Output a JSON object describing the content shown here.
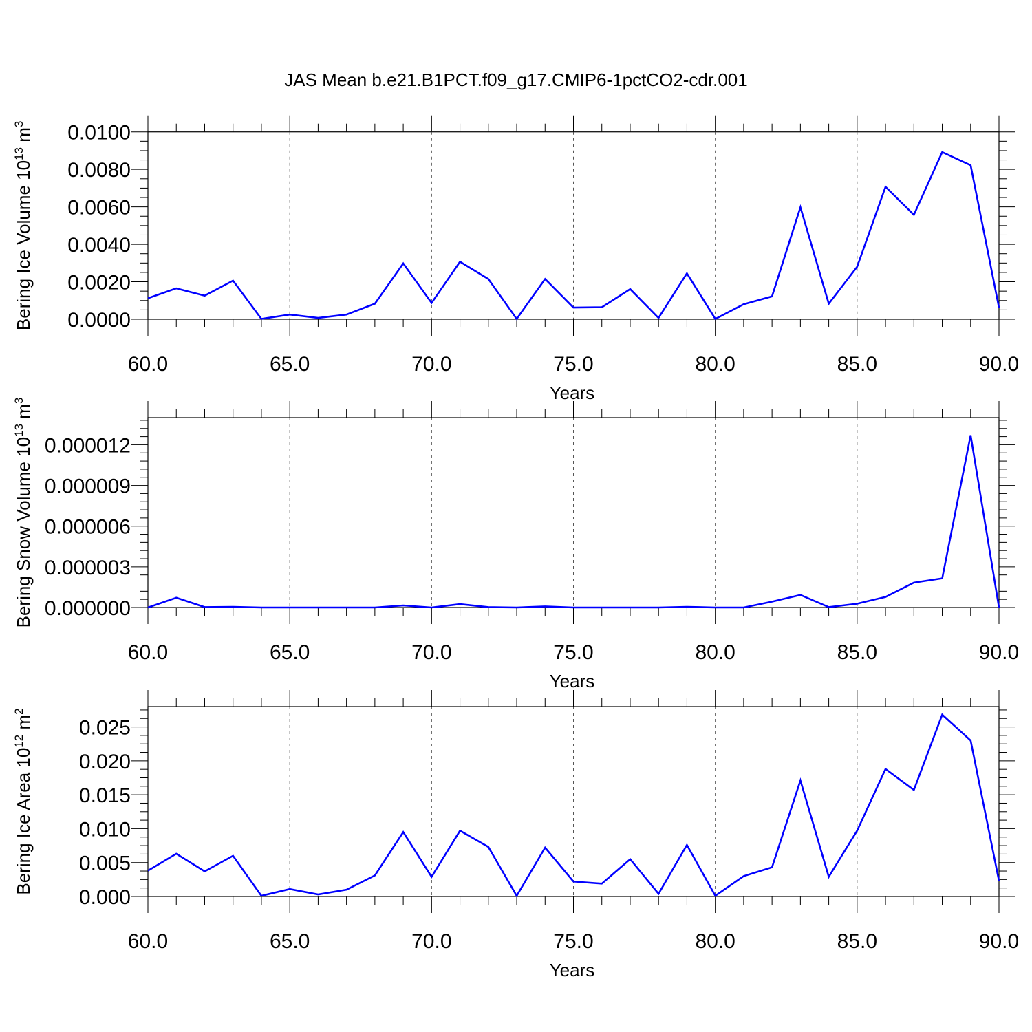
{
  "figure_title": "JAS Mean b.e21.B1PCT.f09_g17.CMIP6-1pctCO2-cdr.001",
  "line_color": "#0000ff",
  "chart_data": [
    {
      "type": "line",
      "title": "JAS Mean b.e21.B1PCT.f09_g17.CMIP6-1pctCO2-cdr.001",
      "xlabel": "Years",
      "ylabel": "Bering Ice Volume 10",
      "ylabel_sup": "13",
      "ylabel_unit": "m",
      "ylabel_unit_sup": "3",
      "xlim": [
        60,
        90
      ],
      "ylim": [
        0,
        0.0101
      ],
      "xticks": [
        "60.0",
        "65.0",
        "70.0",
        "75.0",
        "80.0",
        "85.0",
        "90.0"
      ],
      "yticks": [
        "0.0000",
        "0.0020",
        "0.0040",
        "0.0060",
        "0.0080",
        "0.0100"
      ],
      "grid": "vertical dashed at major x ticks",
      "x": [
        60,
        61,
        62,
        63,
        64,
        65,
        66,
        67,
        68,
        69,
        70,
        71,
        72,
        73,
        74,
        75,
        76,
        77,
        78,
        79,
        80,
        81,
        82,
        83,
        84,
        85,
        86,
        87,
        88,
        89,
        90
      ],
      "values": [
        0.00112,
        0.00165,
        0.00126,
        0.00206,
        2e-05,
        0.00025,
        7e-05,
        0.00025,
        0.00083,
        0.00298,
        0.00087,
        0.00307,
        0.00215,
        2e-05,
        0.00215,
        0.00062,
        0.00064,
        0.00161,
        7e-05,
        0.00245,
        2e-05,
        0.0008,
        0.00122,
        0.00598,
        0.00083,
        0.0028,
        0.00707,
        0.00557,
        0.00892,
        0.00822,
        0.00062
      ]
    },
    {
      "type": "line",
      "xlabel": "Years",
      "ylabel": "Bering Snow Volume 10",
      "ylabel_sup": "13",
      "ylabel_unit": "m",
      "ylabel_unit_sup": "3",
      "xlim": [
        60,
        90
      ],
      "ylim": [
        0,
        1.4e-05
      ],
      "xticks": [
        "60.0",
        "65.0",
        "70.0",
        "75.0",
        "80.0",
        "85.0",
        "90.0"
      ],
      "yticks": [
        "0.000000",
        "0.000003",
        "0.000006",
        "0.000009",
        "0.000012"
      ],
      "grid": "vertical dashed at major x ticks",
      "x": [
        60,
        61,
        62,
        63,
        64,
        65,
        66,
        67,
        68,
        69,
        70,
        71,
        72,
        73,
        74,
        75,
        76,
        77,
        78,
        79,
        80,
        81,
        82,
        83,
        84,
        85,
        86,
        87,
        88,
        89,
        90
      ],
      "values": [
        0.0,
        7.2e-07,
        3e-08,
        5e-08,
        0.0,
        0.0,
        0.0,
        0.0,
        0.0,
        1.5e-07,
        0.0,
        2.5e-07,
        3e-08,
        0.0,
        8e-08,
        0.0,
        0.0,
        0.0,
        0.0,
        5e-08,
        0.0,
        0.0,
        4.3e-07,
        9.3e-07,
        3e-08,
        2.8e-07,
        7.8e-07,
        1.83e-06,
        2.15e-06,
        1.27e-05,
        0.0
      ]
    },
    {
      "type": "line",
      "xlabel": "Years",
      "ylabel": "Bering Ice Area 10",
      "ylabel_sup": "12",
      "ylabel_unit": "m",
      "ylabel_unit_sup": "2",
      "xlim": [
        60,
        90
      ],
      "ylim": [
        0,
        0.028
      ],
      "xticks": [
        "60.0",
        "65.0",
        "70.0",
        "75.0",
        "80.0",
        "85.0",
        "90.0"
      ],
      "yticks": [
        "0.000",
        "0.005",
        "0.010",
        "0.015",
        "0.020",
        "0.025"
      ],
      "grid": "vertical dashed at major x ticks",
      "x": [
        60,
        61,
        62,
        63,
        64,
        65,
        66,
        67,
        68,
        69,
        70,
        71,
        72,
        73,
        74,
        75,
        76,
        77,
        78,
        79,
        80,
        81,
        82,
        83,
        84,
        85,
        86,
        87,
        88,
        89,
        90
      ],
      "values": [
        0.0038,
        0.0063,
        0.0037,
        0.006,
        0.0001,
        0.0011,
        0.0003,
        0.001,
        0.0031,
        0.0095,
        0.0029,
        0.0097,
        0.0073,
        0.0001,
        0.0072,
        0.0022,
        0.0019,
        0.0055,
        0.0004,
        0.0076,
        0.0001,
        0.003,
        0.0043,
        0.0171,
        0.0029,
        0.0097,
        0.0188,
        0.0157,
        0.0268,
        0.023,
        0.0023
      ]
    }
  ]
}
